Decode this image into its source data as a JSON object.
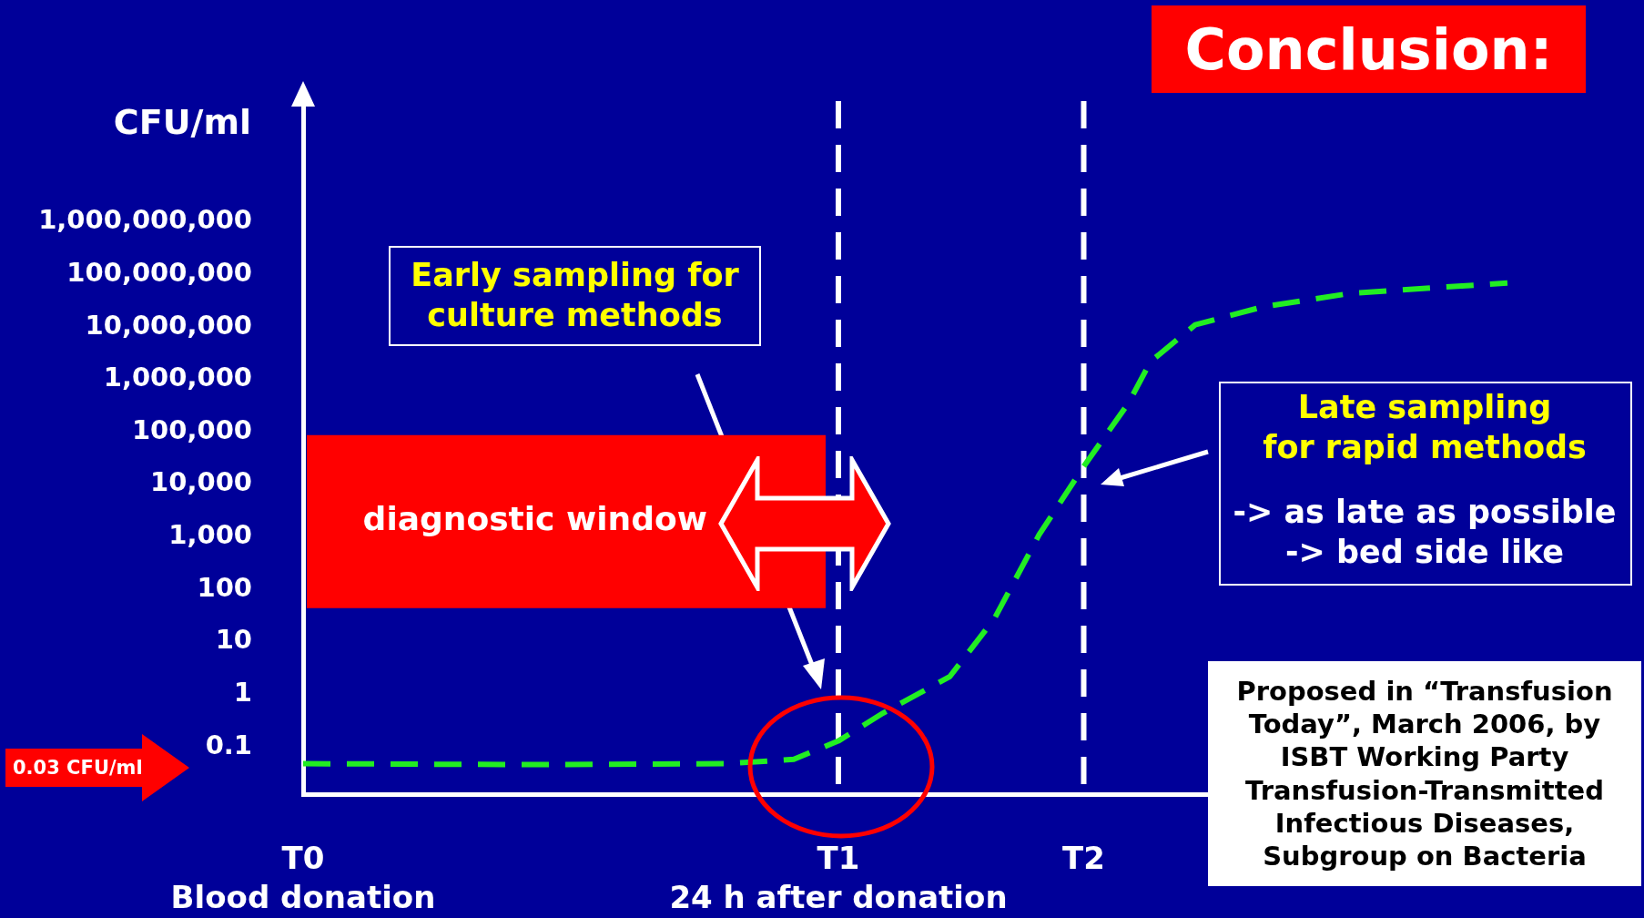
{
  "chart_data": {
    "type": "line",
    "title": "Conclusion:",
    "ylabel": "CFU/ml",
    "categories": [
      "T0\nBlood donation",
      null,
      null,
      null,
      null,
      null,
      null,
      null,
      null,
      null,
      null,
      null,
      null,
      null,
      null,
      null,
      null,
      null,
      null,
      null,
      null,
      null,
      null,
      null,
      "T1\n24 h after donation",
      null,
      null,
      null,
      null,
      null,
      null,
      null,
      null,
      null,
      null,
      "T2",
      null,
      null,
      null,
      null,
      null,
      null,
      null,
      null,
      null,
      null,
      null,
      null,
      null,
      null,
      null,
      null,
      null,
      null,
      null,
      null,
      null
    ],
    "series": [
      {
        "color": "#22ee22",
        "values": [
          0.048,
          null,
          null,
          null,
          null,
          null,
          null,
          null,
          null,
          null,
          0.046,
          null,
          null,
          null,
          null,
          null,
          null,
          null,
          null,
          0.048,
          null,
          null,
          0.058,
          null,
          0.13,
          null,
          0.44,
          null,
          null,
          2.2,
          null,
          28,
          null,
          1100,
          null,
          22000,
          null,
          350000,
          2200000,
          null,
          11000000,
          null,
          null,
          24000000,
          null,
          null,
          null,
          44000000,
          null,
          null,
          null,
          null,
          null,
          null,
          69000000,
          null,
          null
        ]
      }
    ],
    "log": "y",
    "ylim": [
      0.0126,
      300000000000
    ],
    "yticks": [
      {
        "value": 0.1,
        "label": "0.1"
      },
      {
        "value": 1,
        "label": "1"
      },
      {
        "value": 10,
        "label": "10"
      },
      {
        "value": 100,
        "label": "100"
      },
      {
        "value": 1000,
        "label": "1,000"
      },
      {
        "value": 10000,
        "label": "10,000"
      },
      {
        "value": 100000,
        "label": "100,000"
      },
      {
        "value": 1000000,
        "label": "1,000,000"
      },
      {
        "value": 10000000,
        "label": "10,000,000"
      },
      {
        "value": 100000000,
        "label": "100,000,000"
      },
      {
        "value": 1000000000,
        "label": "1,000,000,000"
      }
    ],
    "ref_lines": [
      {
        "axis": "x",
        "value": "T1\n24 h after donation",
        "color": "#ffffff",
        "line_style": "dashed"
      },
      {
        "axis": "x",
        "value": "T2",
        "color": "#ffffff",
        "line_style": "dashed"
      }
    ],
    "bands": [
      {
        "axis": "y",
        "from": 44,
        "to": 87000,
        "label": "diagnostic window",
        "color": "#ff0000"
      }
    ],
    "annotations": [
      "Early sampling for\nculture methods",
      "Late sampling\nfor rapid methods",
      "-> as late as possible\n-> bed side like",
      "Proposed in “Transfusion Today”, March 2006, by ISBT Working Party Transfusion-Transmitted Infectious Diseases, Subgroup on Bacteria",
      "0.03 CFU/ml"
    ],
    "line_style": "dashed",
    "marker": "none",
    "grid": false,
    "legend": false
  }
}
